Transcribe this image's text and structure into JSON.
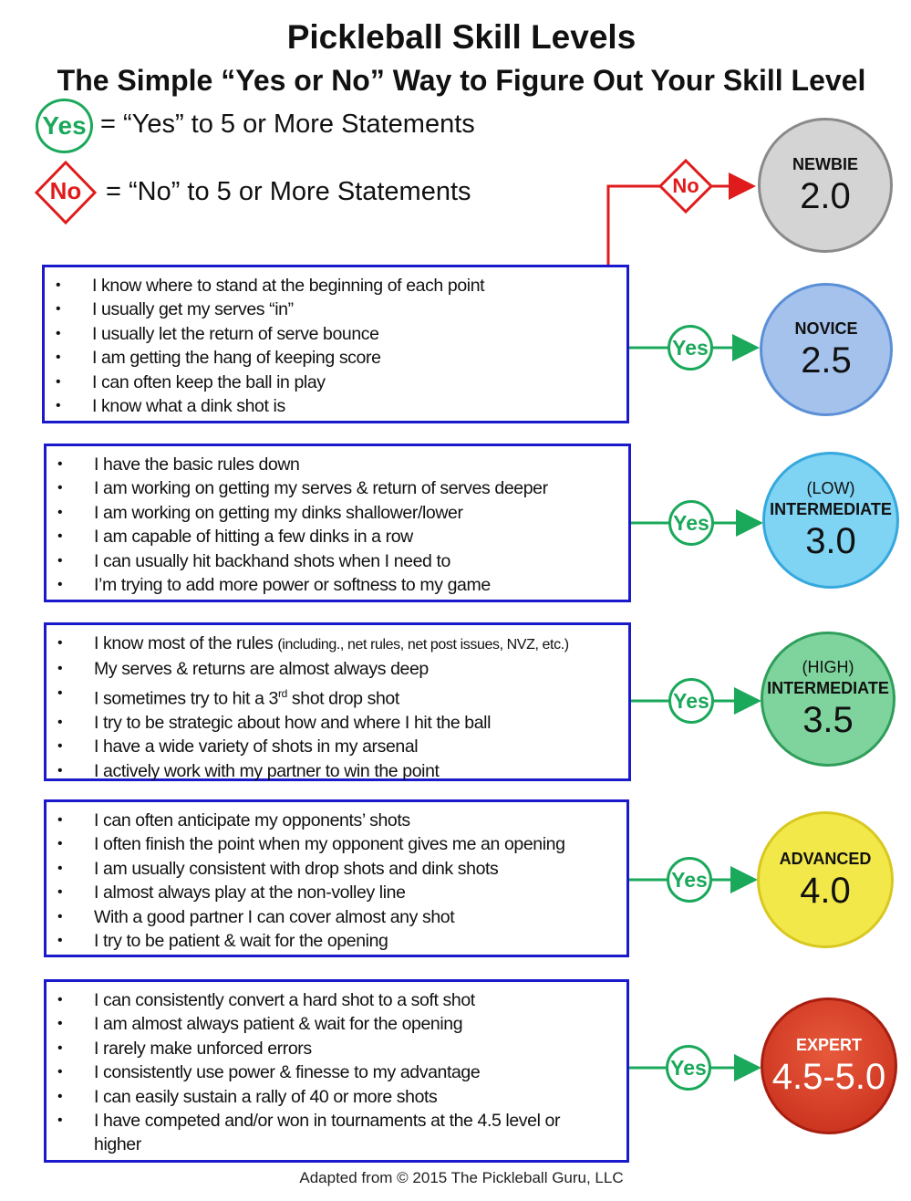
{
  "title": "Pickleball Skill Levels",
  "subtitle": "The Simple “Yes or No” Way to Figure Out Your Skill Level",
  "legend": {
    "yes_badge": "Yes",
    "yes_text": "=  “Yes” to 5 or More Statements",
    "no_badge": "No",
    "no_text": "=  “No” to 5 or More Statements"
  },
  "colors": {
    "yes": "#1aa85a",
    "no": "#e01b1b",
    "box_border": "#1a1acc"
  },
  "no_branch": {
    "badge": "No",
    "level": "NEWBIE",
    "rating": "2.0",
    "color": "#d4d4d4"
  },
  "groups": [
    {
      "badge": "Yes",
      "level_lines": [
        "NOVICE"
      ],
      "rating": "2.5",
      "color": "#a4c2ec",
      "statements": [
        "I know where to stand at the beginning of each point",
        "I usually get my serves “in”",
        "I usually let the return of serve bounce",
        "I am getting the hang of keeping score",
        "I can often keep the ball in play",
        "I know what a dink shot is"
      ]
    },
    {
      "badge": "Yes",
      "level_lines": [
        "(LOW)",
        "INTERMEDIATE"
      ],
      "rating": "3.0",
      "color": "#7fd3f3",
      "statements": [
        "I have the basic rules down",
        "I am working on getting my serves & return of serves deeper",
        "I am working on getting my dinks shallower/lower",
        "I am capable of hitting a few dinks in a row",
        "I can usually hit backhand shots when I need to",
        "I’m trying to add more power or softness to my game"
      ]
    },
    {
      "badge": "Yes",
      "level_lines": [
        "(HIGH)",
        "INTERMEDIATE"
      ],
      "rating": "3.5",
      "color": "#7fd49e",
      "statements": [
        "I know most of the rules",
        "My serves & returns are almost always deep",
        "I sometimes try to hit a 3rd shot drop shot",
        "I try to be strategic about how and where I hit the ball",
        "I have a wide variety of shots in my arsenal",
        "I actively work with my partner to win the point"
      ],
      "statement_note": "(including., net rules, net post issues, NVZ, etc.)"
    },
    {
      "badge": "Yes",
      "level_lines": [
        "ADVANCED"
      ],
      "rating": "4.0",
      "color": "#f2e84a",
      "statements": [
        "I can often anticipate my opponents’ shots",
        "I often finish the point when my opponent gives me an opening",
        "I am usually consistent with drop shots and dink shots",
        "I almost always play at the non-volley line",
        "With a good partner I can cover almost any shot",
        "I try to be patient & wait for the opening"
      ]
    },
    {
      "badge": "Yes",
      "level_lines": [
        "EXPERT"
      ],
      "rating": "4.5-5.0",
      "color": "#d9341f",
      "statements": [
        "I can consistently convert a hard shot to a soft shot",
        "I am almost always patient & wait for the opening",
        "I rarely make unforced errors",
        "I consistently use power & finesse to my advantage",
        "I can easily sustain a rally of 40 or more shots",
        "I have competed and/or won in tournaments at the 4.5 level or higher"
      ]
    }
  ],
  "footer": "Adapted from © 2015 The Pickleball Guru, LLC"
}
